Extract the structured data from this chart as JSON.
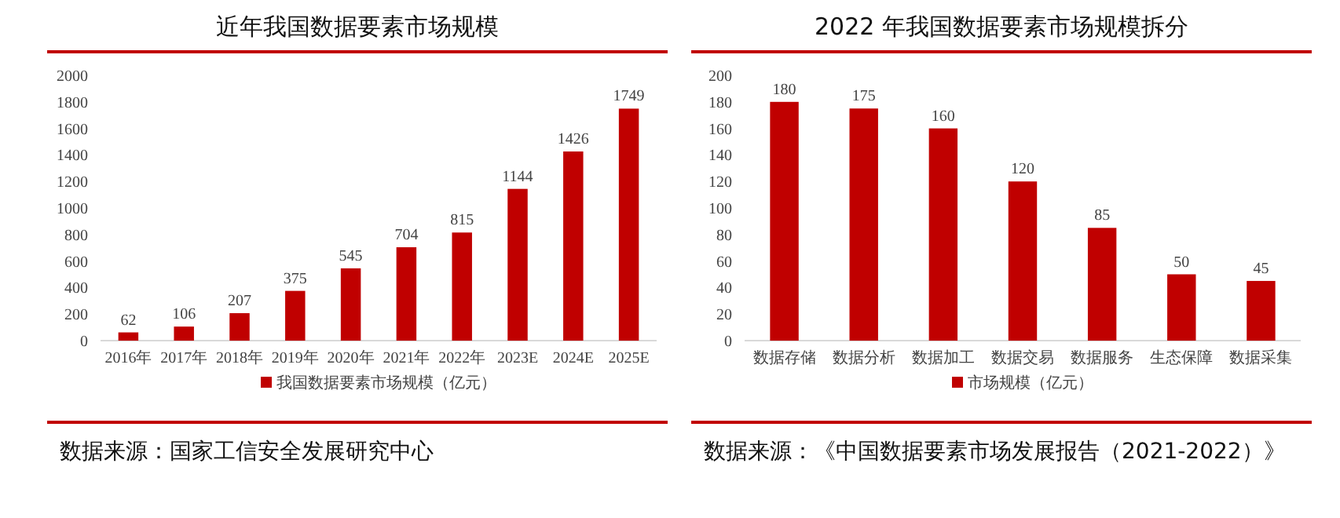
{
  "chart_data": [
    {
      "type": "bar",
      "title": "近年我国数据要素市场规模",
      "categories": [
        "2016年",
        "2017年",
        "2018年",
        "2019年",
        "2020年",
        "2021年",
        "2022年",
        "2023E",
        "2024E",
        "2025E"
      ],
      "series": [
        {
          "name": "我国数据要素市场规模（亿元）",
          "color": "#c00000",
          "values": [
            62,
            106,
            207,
            375,
            545,
            704,
            815,
            1144,
            1426,
            1749
          ]
        }
      ],
      "ylim": [
        0,
        2000
      ],
      "yticks": [
        0,
        200,
        400,
        600,
        800,
        1000,
        1200,
        1400,
        1600,
        1800,
        2000
      ],
      "data_labels": true,
      "legend": "bottom",
      "grid": false,
      "annotations": [
        "数据来源：国家工信安全发展研究中心"
      ]
    },
    {
      "type": "bar",
      "title": "2022 年我国数据要素市场规模拆分",
      "categories": [
        "数据存储",
        "数据分析",
        "数据加工",
        "数据交易",
        "数据服务",
        "生态保障",
        "数据采集"
      ],
      "series": [
        {
          "name": "市场规模（亿元）",
          "color": "#c00000",
          "values": [
            180,
            175,
            160,
            120,
            85,
            50,
            45
          ]
        }
      ],
      "ylim": [
        0,
        200
      ],
      "yticks": [
        0,
        20,
        40,
        60,
        80,
        100,
        120,
        140,
        160,
        180,
        200
      ],
      "data_labels": true,
      "legend": "bottom",
      "grid": false,
      "annotations": [
        "数据来源：《中国数据要素市场发展报告（2021-2022）》"
      ]
    }
  ]
}
